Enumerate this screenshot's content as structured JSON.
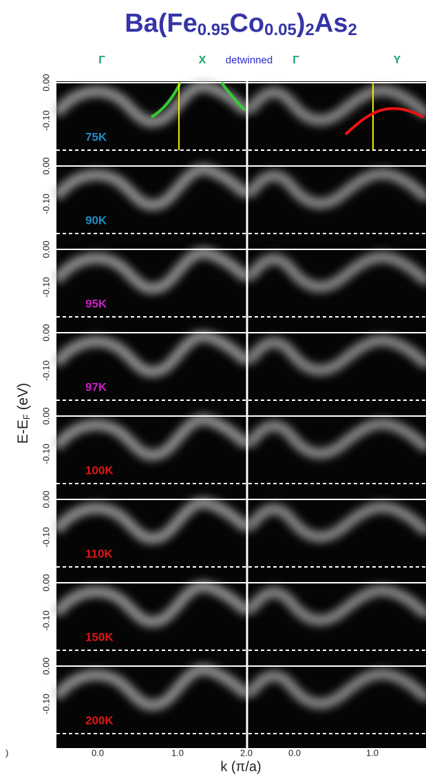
{
  "title": {
    "parts": [
      {
        "text": "Ba(Fe",
        "sub": false
      },
      {
        "text": "0.95",
        "sub": true
      },
      {
        "text": "Co",
        "sub": false
      },
      {
        "text": "0.05",
        "sub": true
      },
      {
        "text": ")",
        "sub": false
      },
      {
        "text": "2",
        "sub": true
      },
      {
        "text": "As",
        "sub": false
      },
      {
        "text": "2",
        "sub": true
      }
    ],
    "color": "#3535a8"
  },
  "top_labels": {
    "gamma_left": "Γ",
    "x": "X",
    "detwinned": "detwinned",
    "gamma_right": "Γ",
    "y": "Y"
  },
  "y_axis": {
    "label_main": "E-E",
    "label_sub": "F",
    "label_unit": " (eV)",
    "tick_labels": [
      "0.00",
      "-0.10"
    ]
  },
  "x_axis": {
    "label": "k (π/a)",
    "left_ticks": [
      "0.0",
      "1.0",
      "2.0"
    ],
    "right_ticks": [
      "0.0",
      "1.0"
    ],
    "stray": ")"
  },
  "panels": [
    {
      "temperature": "75K",
      "color": "#1f8cc8"
    },
    {
      "temperature": "90K",
      "color": "#1f8cc8"
    },
    {
      "temperature": "95K",
      "color": "#c81fc8"
    },
    {
      "temperature": "97K",
      "color": "#c81fc8"
    },
    {
      "temperature": "100K",
      "color": "#e01515"
    },
    {
      "temperature": "110K",
      "color": "#e01515"
    },
    {
      "temperature": "150K",
      "color": "#e01515"
    },
    {
      "temperature": "200K",
      "color": "#e01515"
    }
  ]
}
